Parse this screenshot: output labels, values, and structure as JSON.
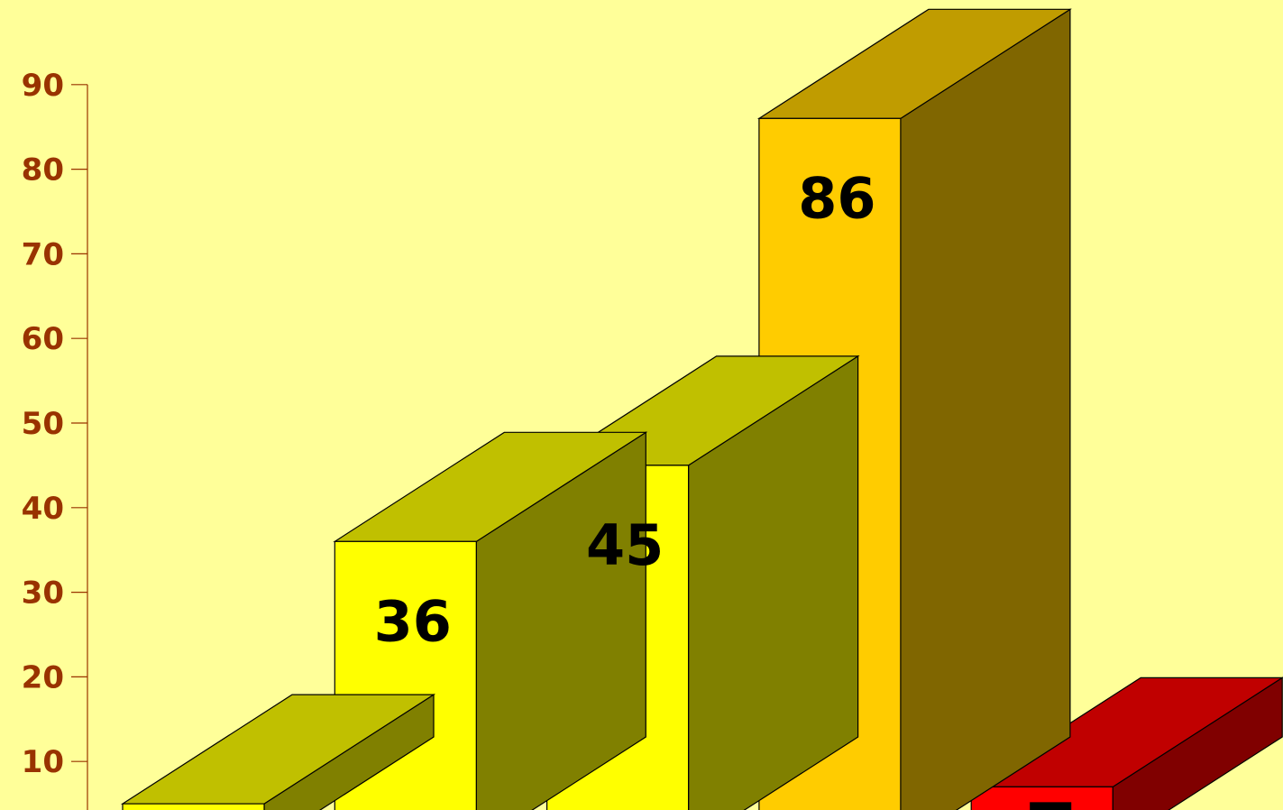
{
  "chart_data": {
    "type": "bar",
    "style": "3d-column",
    "categories": [
      "",
      "",
      "",
      "",
      ""
    ],
    "values": [
      5,
      36,
      45,
      86,
      7
    ],
    "data_labels": [
      "",
      "36",
      "45",
      "86",
      ""
    ],
    "y_ticks": [
      "10",
      "20",
      "30",
      "40",
      "50",
      "60",
      "70",
      "80",
      "90"
    ],
    "ylim": [
      0,
      90
    ],
    "title": "",
    "xlabel": "",
    "ylabel": "",
    "grid": false,
    "legend": "none",
    "colors": {
      "background": "#FFFF99",
      "tick_label": "#993300",
      "axis": "#993300",
      "bars": [
        {
          "front": "#FFFF00",
          "top": "#C0C000",
          "side": "#808000"
        },
        {
          "front": "#FFFF00",
          "top": "#C0C000",
          "side": "#808000"
        },
        {
          "front": "#FFFF00",
          "top": "#C0C000",
          "side": "#808000"
        },
        {
          "front": "#FFCC00",
          "top": "#C09C00",
          "side": "#806600"
        },
        {
          "front": "#FF0000",
          "top": "#C00000",
          "side": "#800000"
        }
      ]
    }
  }
}
